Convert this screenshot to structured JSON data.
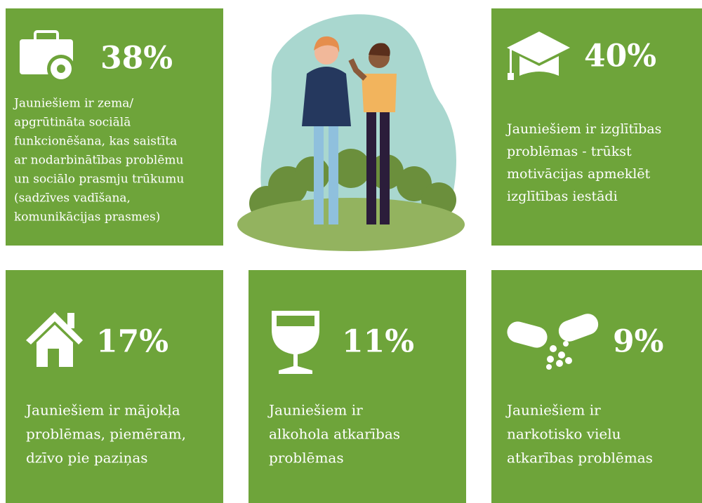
{
  "tiles": [
    {
      "percent": "38%",
      "lines": [
        "Jauniešiem ir zema/",
        "apgrūtināta sociālā",
        "funkcionēšana, kas saistīta",
        "ar nodarbinātības problēmu",
        "un sociālo prasmju trūkumu",
        "(sadzīves vadīšana,",
        "komunikācijas prasmes)"
      ]
    },
    {
      "percent": "40%",
      "lines": [
        "Jauniešiem ir izglītības",
        "problēmas - trūkst",
        "motivācijas apmeklēt",
        "izglītības iestādi"
      ]
    },
    {
      "percent": "17%",
      "lines": [
        "Jauniešiem ir mājokļa",
        "problēmas, piemēram,",
        "dzīvo pie paziņas"
      ]
    },
    {
      "percent": "11%",
      "lines": [
        "Jauniešiem ir",
        "alkohola atkarības",
        "problēmas"
      ]
    },
    {
      "percent": "9%",
      "lines": [
        "Jauniešiem ir",
        "narkotisko vielu",
        "atkarības problēmas"
      ]
    }
  ]
}
